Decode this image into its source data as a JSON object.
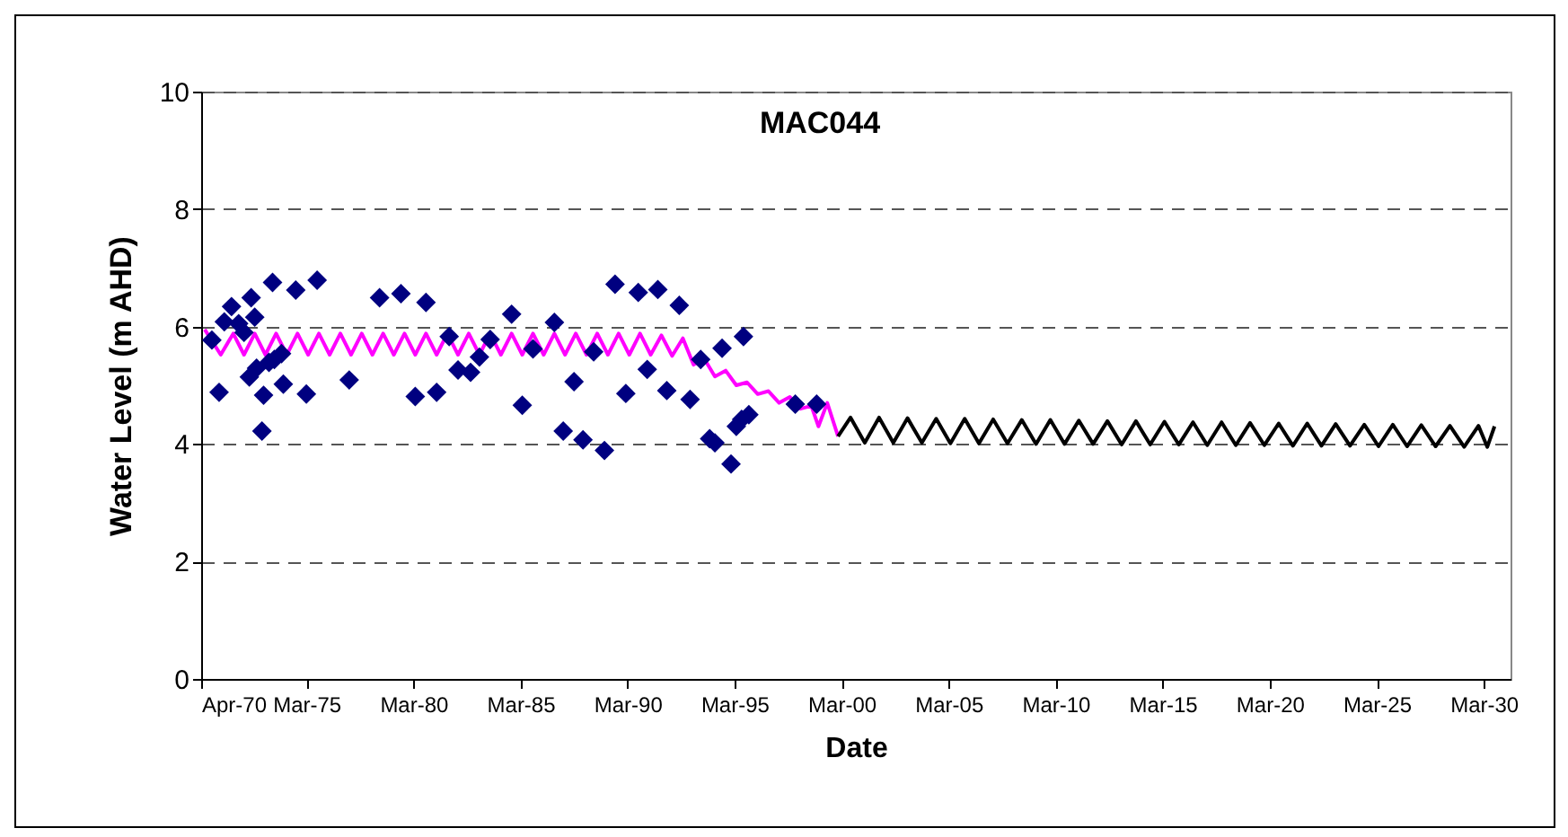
{
  "chart_data": {
    "type": "scatter",
    "title": "MAC044",
    "xlabel": "Date",
    "ylabel": "Water Level (m AHD)",
    "xlim": [
      "1970-04",
      "2031-06"
    ],
    "ylim": [
      0,
      10
    ],
    "yticks": [
      0,
      2,
      4,
      6,
      8,
      10
    ],
    "xticks": [
      {
        "value": "1970-04",
        "label": "Apr-70"
      },
      {
        "value": "1975-03",
        "label": "Mar-75"
      },
      {
        "value": "1980-03",
        "label": "Mar-80"
      },
      {
        "value": "1985-03",
        "label": "Mar-85"
      },
      {
        "value": "1990-03",
        "label": "Mar-90"
      },
      {
        "value": "1995-03",
        "label": "Mar-95"
      },
      {
        "value": "2000-03",
        "label": "Mar-00"
      },
      {
        "value": "2005-03",
        "label": "Mar-05"
      },
      {
        "value": "2010-03",
        "label": "Mar-10"
      },
      {
        "value": "2015-03",
        "label": "Mar-15"
      },
      {
        "value": "2020-03",
        "label": "Mar-20"
      },
      {
        "value": "2025-03",
        "label": "Mar-25"
      },
      {
        "value": "2030-03",
        "label": "Mar-30"
      }
    ],
    "grid": "y",
    "series": [
      {
        "type": "line",
        "color": "#ff00ff",
        "line_style": "solid",
        "x": [
          "1970-06",
          "1971-03",
          "1971-10",
          "1972-04",
          "1972-10",
          "1973-04",
          "1973-10",
          "1974-04",
          "1974-10",
          "1975-04",
          "1975-10",
          "1976-04",
          "1976-10",
          "1977-04",
          "1977-10",
          "1978-04",
          "1978-10",
          "1979-04",
          "1979-10",
          "1980-04",
          "1980-10",
          "1981-04",
          "1981-10",
          "1982-04",
          "1982-10",
          "1983-04",
          "1983-10",
          "1984-04",
          "1984-10",
          "1985-04",
          "1985-10",
          "1986-04",
          "1986-10",
          "1987-04",
          "1987-10",
          "1988-04",
          "1988-10",
          "1989-04",
          "1989-10",
          "1990-04",
          "1990-10",
          "1991-04",
          "1991-10",
          "1992-04",
          "1992-10",
          "1993-04",
          "1993-10",
          "1994-04",
          "1994-10",
          "1995-04",
          "1995-10",
          "1996-04",
          "1996-10",
          "1997-04",
          "1997-10",
          "1998-04",
          "1998-10",
          "1999-02",
          "1999-07",
          "2000-01"
        ],
        "values": [
          5.95,
          5.52,
          5.88,
          5.52,
          5.88,
          5.52,
          5.88,
          5.52,
          5.88,
          5.52,
          5.88,
          5.52,
          5.88,
          5.52,
          5.88,
          5.52,
          5.88,
          5.52,
          5.88,
          5.52,
          5.88,
          5.52,
          5.88,
          5.52,
          5.88,
          5.52,
          5.88,
          5.52,
          5.88,
          5.52,
          5.88,
          5.52,
          5.88,
          5.52,
          5.88,
          5.52,
          5.88,
          5.52,
          5.88,
          5.52,
          5.88,
          5.52,
          5.85,
          5.5,
          5.8,
          5.35,
          5.45,
          5.15,
          5.25,
          5.0,
          5.05,
          4.85,
          4.9,
          4.7,
          4.8,
          4.6,
          4.65,
          4.3,
          4.7,
          4.13
        ]
      },
      {
        "type": "line",
        "color": "#000000",
        "line_style": "solid",
        "x": [
          "2000-01",
          "2000-08",
          "2001-04",
          "2001-12",
          "2002-08",
          "2003-04",
          "2003-12",
          "2004-08",
          "2005-04",
          "2005-12",
          "2006-08",
          "2007-04",
          "2007-12",
          "2008-08",
          "2009-04",
          "2009-12",
          "2010-08",
          "2011-04",
          "2011-12",
          "2012-08",
          "2013-04",
          "2013-12",
          "2014-08",
          "2015-04",
          "2015-12",
          "2016-08",
          "2017-04",
          "2017-12",
          "2018-08",
          "2019-04",
          "2019-12",
          "2020-08",
          "2021-04",
          "2021-12",
          "2022-08",
          "2023-04",
          "2023-12",
          "2024-08",
          "2025-04",
          "2025-12",
          "2026-08",
          "2027-04",
          "2027-12",
          "2028-08",
          "2029-04",
          "2029-12",
          "2030-05",
          "2030-09"
        ],
        "values": [
          4.13,
          4.45,
          4.02,
          4.45,
          4.02,
          4.44,
          4.02,
          4.43,
          4.01,
          4.43,
          4.01,
          4.42,
          4.01,
          4.41,
          4.0,
          4.41,
          4.0,
          4.4,
          4.0,
          4.39,
          3.99,
          4.39,
          3.99,
          4.38,
          3.99,
          4.37,
          3.98,
          4.37,
          3.98,
          4.36,
          3.98,
          4.35,
          3.97,
          4.35,
          3.97,
          4.34,
          3.97,
          4.33,
          3.96,
          4.33,
          3.96,
          4.32,
          3.96,
          4.31,
          3.95,
          4.31,
          3.95,
          4.3
        ]
      },
      {
        "type": "scatter",
        "color": "#000080",
        "marker": "diamond",
        "x": [
          "1970-10",
          "1971-02",
          "1971-05",
          "1971-09",
          "1972-01",
          "1972-04",
          "1972-08",
          "1972-10",
          "1972-07",
          "1972-11",
          "1973-03",
          "1973-02",
          "1973-06",
          "1973-09",
          "1974-01",
          "1973-08",
          "1974-02",
          "1974-09",
          "1975-03",
          "1975-09",
          "1977-03",
          "1978-08",
          "1979-08",
          "1980-04",
          "1980-10",
          "1981-04",
          "1981-11",
          "1982-04",
          "1982-11",
          "1983-04",
          "1983-10",
          "1984-10",
          "1985-04",
          "1985-10",
          "1986-10",
          "1987-03",
          "1987-09",
          "1988-02",
          "1988-08",
          "1989-02",
          "1989-08",
          "1990-02",
          "1990-09",
          "1991-02",
          "1991-08",
          "1992-01",
          "1992-08",
          "1993-02",
          "1993-08",
          "1994-01",
          "1994-04",
          "1994-08",
          "1995-01",
          "1995-04",
          "1995-07",
          "1995-11",
          "1995-08",
          "1998-01",
          "1999-01"
        ],
        "values": [
          5.77,
          4.88,
          6.08,
          6.34,
          6.05,
          5.9,
          6.49,
          6.16,
          5.14,
          5.29,
          4.83,
          4.22,
          5.39,
          5.44,
          5.54,
          6.75,
          5.02,
          6.62,
          4.85,
          6.79,
          5.09,
          6.49,
          6.56,
          4.81,
          6.41,
          4.88,
          5.83,
          5.26,
          5.22,
          5.48,
          5.78,
          6.21,
          4.66,
          5.62,
          6.07,
          4.22,
          5.06,
          4.07,
          5.57,
          3.89,
          6.72,
          4.86,
          6.58,
          5.27,
          6.63,
          4.91,
          6.36,
          4.76,
          5.44,
          4.09,
          4.02,
          5.63,
          3.66,
          4.3,
          4.42,
          4.5,
          5.83,
          4.68,
          4.68
        ]
      }
    ]
  }
}
